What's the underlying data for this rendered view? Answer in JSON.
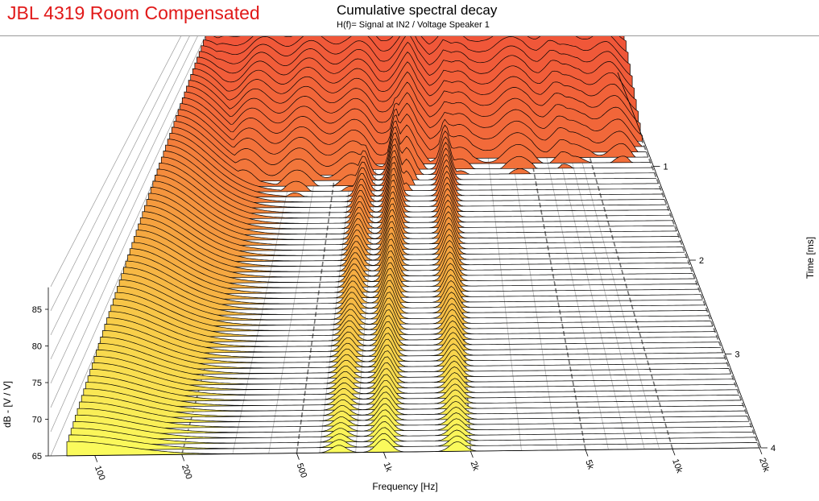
{
  "header": {
    "watermark": "JBL 4319 Room Compensated",
    "title": "Cumulative spectral decay",
    "subtitle": "H(f)= Signal at IN2 / Voltage Speaker 1"
  },
  "chart_data": {
    "type": "waterfall",
    "title": "Cumulative spectral decay",
    "subtitle": "H(f)= Signal at IN2 / Voltage Speaker 1",
    "xlabel": "Frequency [Hz]",
    "ylabel": "dB - [V / V]",
    "zlabel": "Time [ms]",
    "x_scale": "log",
    "xlim": [
      80,
      20000
    ],
    "ylim": [
      65,
      88
    ],
    "zlim": [
      0,
      4
    ],
    "x_ticks": [
      {
        "value": 100,
        "label": "100"
      },
      {
        "value": 200,
        "label": "200"
      },
      {
        "value": 500,
        "label": "500"
      },
      {
        "value": 1000,
        "label": "1k"
      },
      {
        "value": 2000,
        "label": "2k"
      },
      {
        "value": 5000,
        "label": "5k"
      },
      {
        "value": 10000,
        "label": "10k"
      },
      {
        "value": 20000,
        "label": "20k"
      }
    ],
    "y_ticks": [
      {
        "value": 65,
        "label": "65"
      },
      {
        "value": 70,
        "label": "70"
      },
      {
        "value": 75,
        "label": "75"
      },
      {
        "value": 80,
        "label": "80"
      },
      {
        "value": 85,
        "label": "85"
      }
    ],
    "z_ticks": [
      {
        "value": 1,
        "label": "1"
      },
      {
        "value": 2,
        "label": "2"
      },
      {
        "value": 3,
        "label": "3"
      },
      {
        "value": 4,
        "label": "4"
      }
    ],
    "slice_count": 72,
    "colormap": [
      "#ef4a38",
      "#f2703a",
      "#f5a13f",
      "#f8d04a",
      "#fafa5c"
    ],
    "grid": true,
    "surface": {
      "freqs": [
        80,
        100,
        130,
        160,
        200,
        250,
        300,
        400,
        500,
        600,
        700,
        800,
        900,
        1000,
        1150,
        1300,
        1500,
        1800,
        2000,
        2500,
        3000,
        4000,
        5000,
        6000,
        7000,
        8000,
        10000,
        12000,
        15000,
        20000
      ],
      "levels_at_0ms": [
        79,
        81,
        83,
        84,
        84.5,
        85,
        85.5,
        85.5,
        86,
        86,
        85.5,
        84.5,
        85,
        86,
        88,
        85,
        84,
        87,
        85,
        84,
        85.5,
        86,
        87,
        86,
        86.5,
        85,
        87,
        86,
        86,
        84
      ],
      "sustained_resonances": [
        {
          "freq": 100,
          "peak": 75.5
        },
        {
          "freq": 1000,
          "peak": 77
        },
        {
          "freq": 700,
          "peak": 72
        },
        {
          "freq": 1800,
          "peak": 74
        }
      ]
    }
  }
}
